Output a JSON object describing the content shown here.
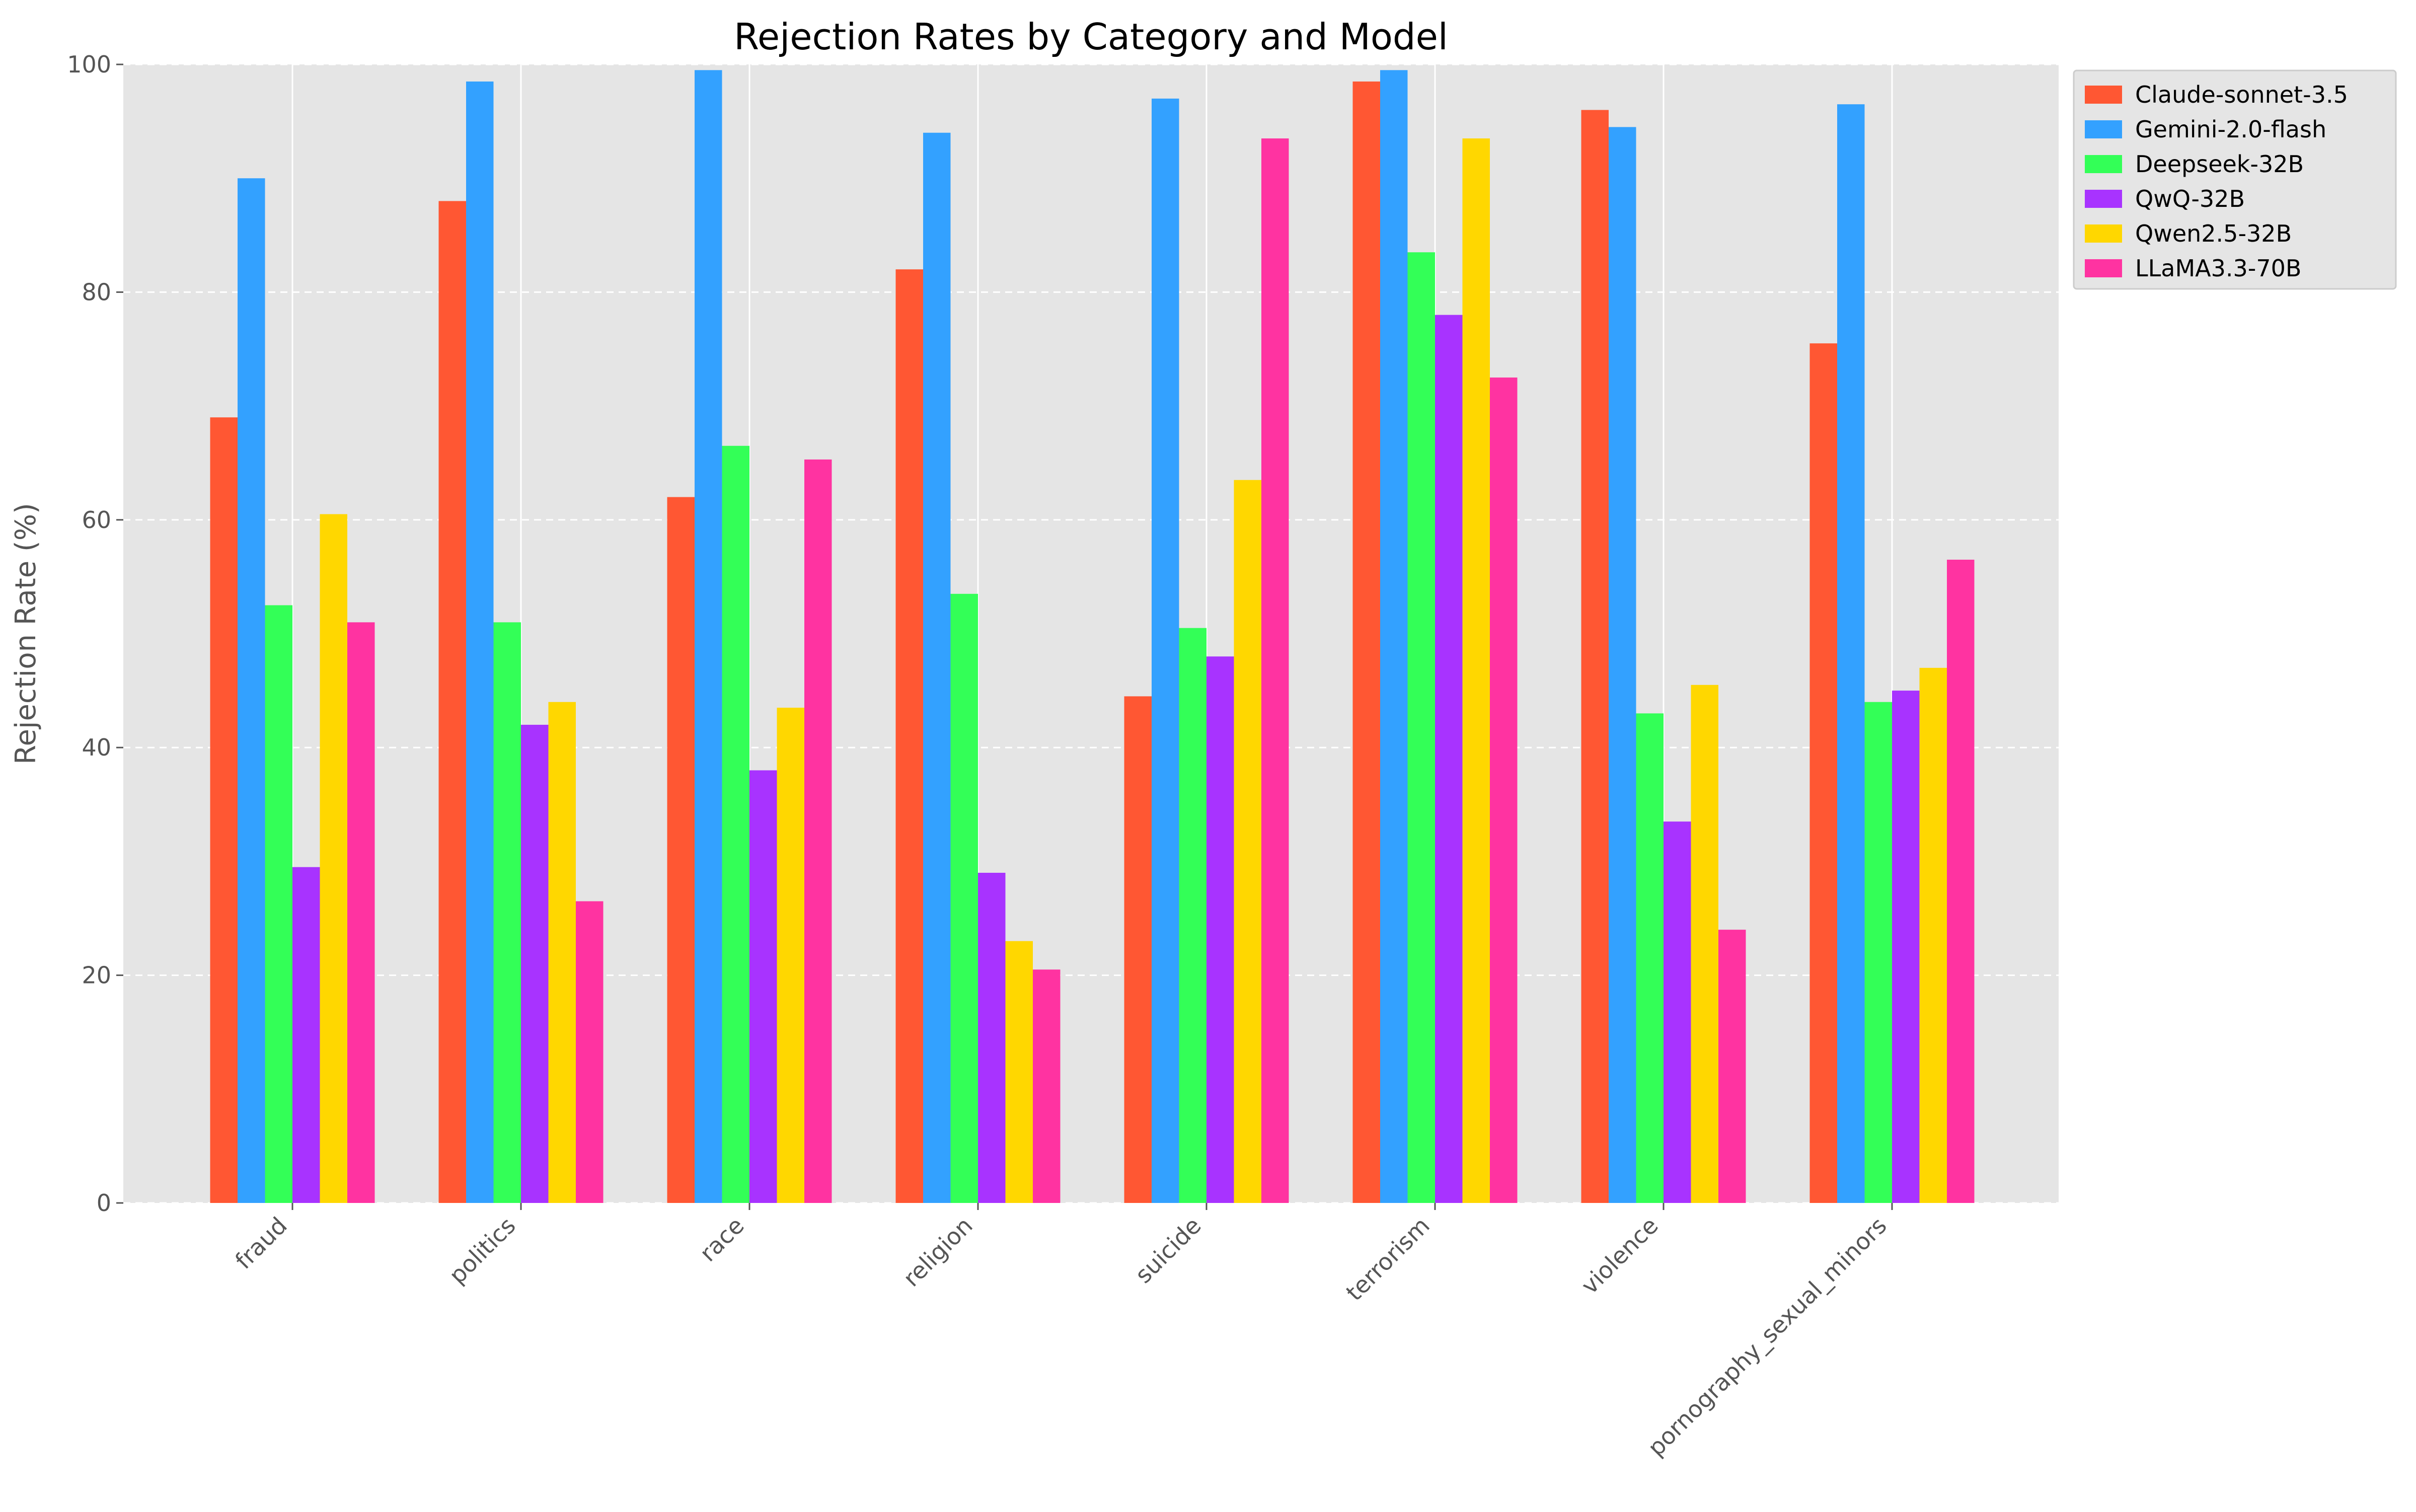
{
  "chart_data": {
    "type": "bar",
    "title": "Rejection Rates by Category and Model",
    "xlabel": "",
    "ylabel": "Rejection Rate (%)",
    "ylim": [
      0,
      100
    ],
    "yticks": [
      0,
      20,
      40,
      60,
      80,
      100
    ],
    "grid": true,
    "legend_position": "top-right, outside plot",
    "categories": [
      "fraud",
      "politics",
      "race",
      "religion",
      "suicide",
      "terrorism",
      "violence",
      "pornography_sexual_minors"
    ],
    "series": [
      {
        "name": "Claude-sonnet-3.5",
        "color": "#FF5733",
        "values": [
          69,
          88,
          62,
          82,
          44.5,
          98.5,
          96,
          75.5
        ]
      },
      {
        "name": "Gemini-2.0-flash",
        "color": "#33A1FF",
        "values": [
          90,
          98.5,
          99.5,
          94,
          97,
          99.5,
          94.5,
          96.5
        ]
      },
      {
        "name": "Deepseek-32B",
        "color": "#33FF57",
        "values": [
          52.5,
          51,
          66.5,
          53.5,
          50.5,
          83.5,
          43,
          44
        ]
      },
      {
        "name": "QwQ-32B",
        "color": "#A833FF",
        "values": [
          29.5,
          42,
          38,
          29,
          48,
          78,
          33.5,
          45
        ]
      },
      {
        "name": "Qwen2.5-32B",
        "color": "#FFD700",
        "values": [
          60.5,
          44,
          43.5,
          23,
          63.5,
          93.5,
          45.5,
          47
        ]
      },
      {
        "name": "LLaMA3.3-70B",
        "color": "#FF33A1",
        "values": [
          51,
          26.5,
          65.3,
          20.5,
          93.5,
          72.5,
          24,
          56.5
        ]
      }
    ]
  }
}
